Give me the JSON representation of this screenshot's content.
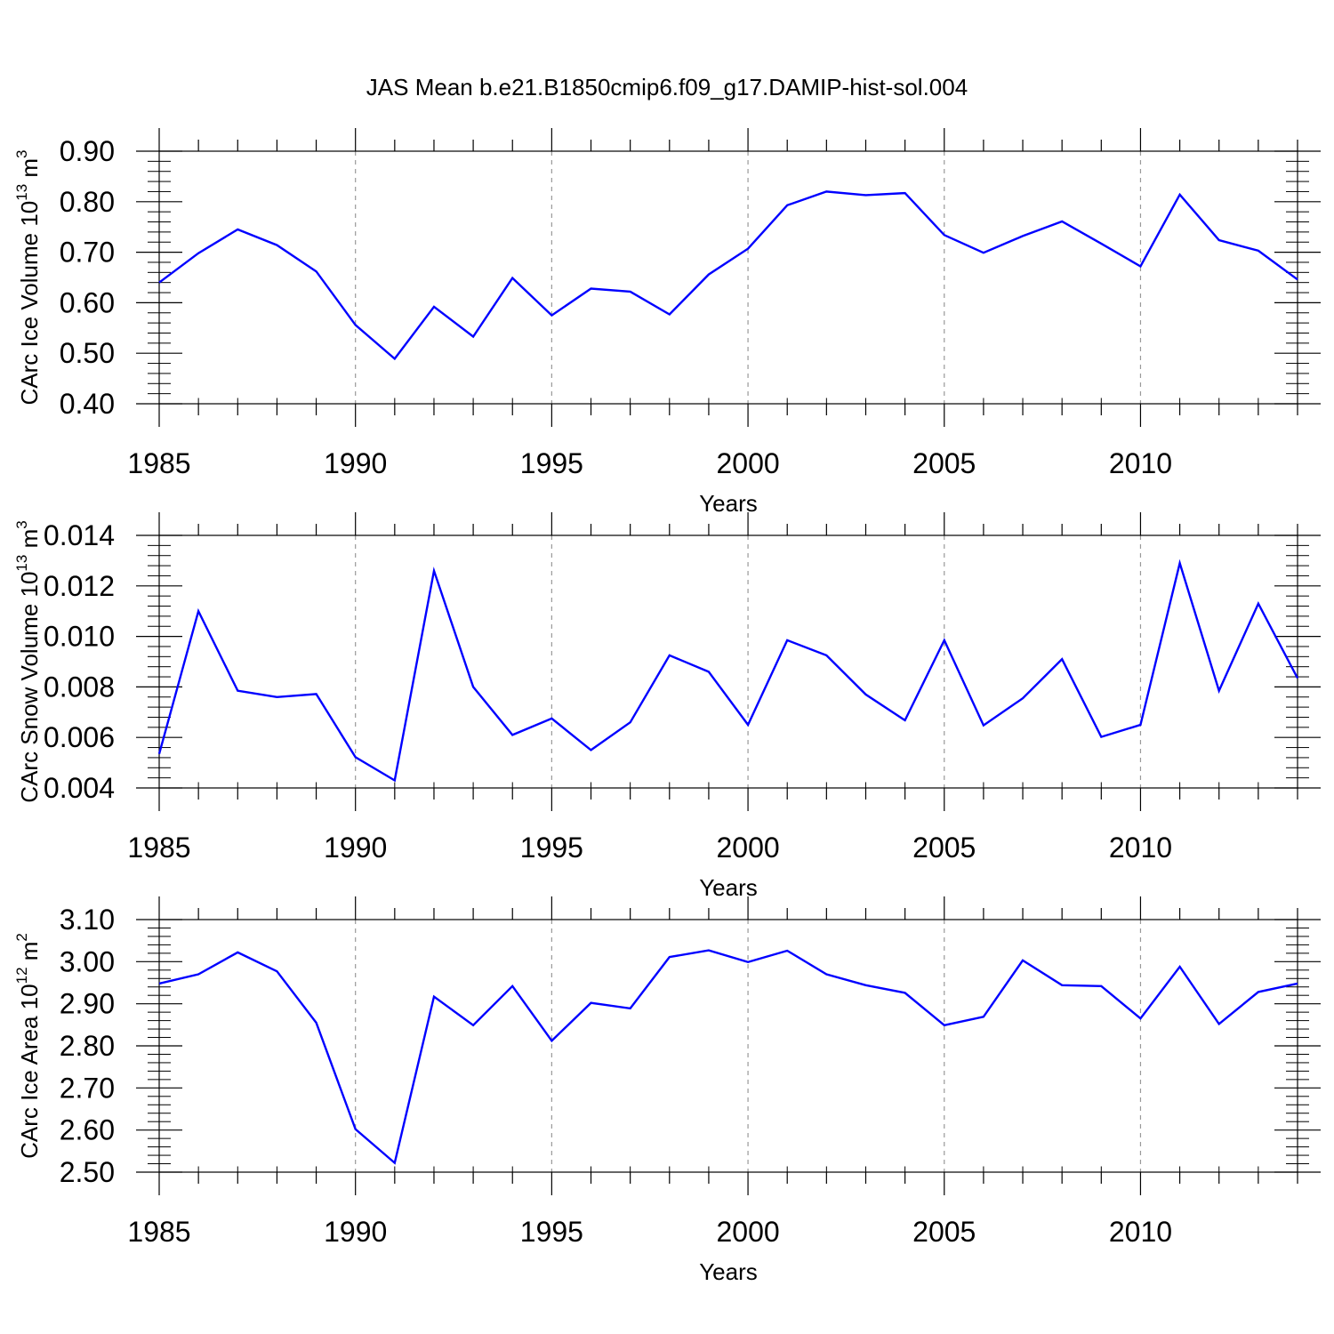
{
  "title": "JAS Mean b.e21.B1850cmip6.f09_g17.DAMIP-hist-sol.004",
  "line_color": "#0000ff",
  "chart_data": [
    {
      "type": "line",
      "xlabel": "Years",
      "ylabel_prefix": "CArc Ice Volume 10",
      "ylabel_exp": "13",
      "ylabel_unit": " m",
      "ylabel_unit_exp": "3",
      "xlim": [
        1985,
        2014
      ],
      "ylim": [
        0.4,
        0.9
      ],
      "xticks": [
        1985,
        1990,
        1995,
        2000,
        2005,
        2010
      ],
      "yticks": [
        "0.40",
        "0.50",
        "0.60",
        "0.70",
        "0.80",
        "0.90"
      ],
      "grid": "vertical-dashed",
      "x": [
        1985,
        1986,
        1987,
        1988,
        1989,
        1990,
        1991,
        1992,
        1993,
        1994,
        1995,
        1996,
        1997,
        1998,
        1999,
        2000,
        2001,
        2002,
        2003,
        2004,
        2005,
        2006,
        2007,
        2008,
        2009,
        2010,
        2011,
        2012,
        2013,
        2014
      ],
      "values": [
        0.64,
        0.698,
        0.745,
        0.714,
        0.662,
        0.556,
        0.489,
        0.592,
        0.533,
        0.649,
        0.575,
        0.628,
        0.622,
        0.577,
        0.656,
        0.707,
        0.793,
        0.82,
        0.813,
        0.817,
        0.734,
        0.699,
        0.732,
        0.761,
        0.717,
        0.672,
        0.814,
        0.724,
        0.703,
        0.646
      ]
    },
    {
      "type": "line",
      "xlabel": "Years",
      "ylabel_prefix": "CArc Snow Volume 10",
      "ylabel_exp": "13",
      "ylabel_unit": " m",
      "ylabel_unit_exp": "3",
      "xlim": [
        1985,
        2014
      ],
      "ylim": [
        0.004,
        0.014
      ],
      "xticks": [
        1985,
        1990,
        1995,
        2000,
        2005,
        2010
      ],
      "yticks": [
        "0.004",
        "0.006",
        "0.008",
        "0.010",
        "0.012",
        "0.014"
      ],
      "grid": "vertical-dashed",
      "x": [
        1985,
        1986,
        1987,
        1988,
        1989,
        1990,
        1991,
        1992,
        1993,
        1994,
        1995,
        1996,
        1997,
        1998,
        1999,
        2000,
        2001,
        2002,
        2003,
        2004,
        2005,
        2006,
        2007,
        2008,
        2009,
        2010,
        2011,
        2012,
        2013,
        2014
      ],
      "values": [
        0.00535,
        0.011,
        0.00785,
        0.0076,
        0.00772,
        0.00522,
        0.0043,
        0.0126,
        0.008,
        0.0061,
        0.00675,
        0.0055,
        0.0066,
        0.00925,
        0.0086,
        0.0065,
        0.00985,
        0.00925,
        0.0077,
        0.00668,
        0.00985,
        0.00648,
        0.00755,
        0.0091,
        0.00602,
        0.0065,
        0.0129,
        0.00785,
        0.0113,
        0.00835
      ]
    },
    {
      "type": "line",
      "xlabel": "Years",
      "ylabel_prefix": "CArc Ice Area 10",
      "ylabel_exp": "12",
      "ylabel_unit": " m",
      "ylabel_unit_exp": "2",
      "xlim": [
        1985,
        2014
      ],
      "ylim": [
        2.5,
        3.1
      ],
      "xticks": [
        1985,
        1990,
        1995,
        2000,
        2005,
        2010
      ],
      "yticks": [
        "2.50",
        "2.60",
        "2.70",
        "2.80",
        "2.90",
        "3.00",
        "3.10"
      ],
      "grid": "vertical-dashed",
      "x": [
        1985,
        1986,
        1987,
        1988,
        1989,
        1990,
        1991,
        1992,
        1993,
        1994,
        1995,
        1996,
        1997,
        1998,
        1999,
        2000,
        2001,
        2002,
        2003,
        2004,
        2005,
        2006,
        2007,
        2008,
        2009,
        2010,
        2011,
        2012,
        2013,
        2014
      ],
      "values": [
        2.948,
        2.97,
        3.022,
        2.977,
        2.855,
        2.602,
        2.522,
        2.917,
        2.849,
        2.942,
        2.812,
        2.902,
        2.889,
        3.011,
        3.027,
        2.999,
        3.026,
        2.97,
        2.944,
        2.926,
        2.849,
        2.869,
        3.003,
        2.944,
        2.942,
        2.865,
        2.988,
        2.852,
        2.928,
        2.948
      ]
    }
  ]
}
